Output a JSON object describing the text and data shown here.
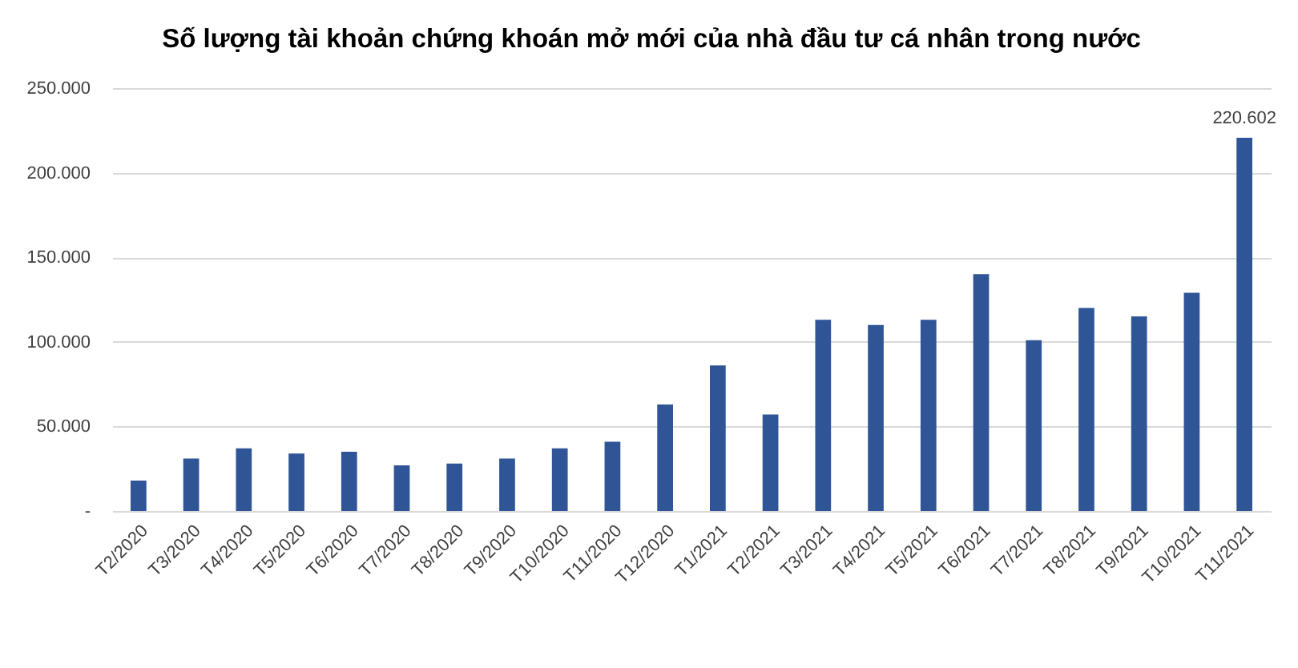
{
  "chart_data": {
    "type": "bar",
    "title": "Số lượng tài khoản chứng khoán mở mới của nhà đầu tư cá nhân trong nước",
    "categories": [
      "T2/2020",
      "T3/2020",
      "T4/2020",
      "T5/2020",
      "T6/2020",
      "T7/2020",
      "T8/2020",
      "T9/2020",
      "T10/2020",
      "T11/2020",
      "T12/2020",
      "T1/2021",
      "T2/2021",
      "T3/2021",
      "T4/2021",
      "T5/2021",
      "T6/2021",
      "T7/2021",
      "T8/2021",
      "T9/2021",
      "T10/2021",
      "T11/2021"
    ],
    "values": [
      18000,
      31000,
      37000,
      34000,
      35000,
      27000,
      28000,
      31000,
      37000,
      41000,
      63000,
      86000,
      57000,
      113000,
      110000,
      113000,
      140000,
      101000,
      120000,
      115000,
      129000,
      220602
    ],
    "value_labels": [
      null,
      null,
      null,
      null,
      null,
      null,
      null,
      null,
      null,
      null,
      null,
      null,
      null,
      null,
      null,
      null,
      null,
      null,
      null,
      null,
      null,
      "220.602"
    ],
    "color": "#2f5597",
    "ylim": [
      0,
      250000
    ],
    "yticks": [
      {
        "value": 0,
        "label": "-"
      },
      {
        "value": 50000,
        "label": "50.000"
      },
      {
        "value": 100000,
        "label": "100.000"
      },
      {
        "value": 150000,
        "label": "150.000"
      },
      {
        "value": 200000,
        "label": "200.000"
      },
      {
        "value": 250000,
        "label": "250.000"
      }
    ],
    "grid": "y"
  }
}
